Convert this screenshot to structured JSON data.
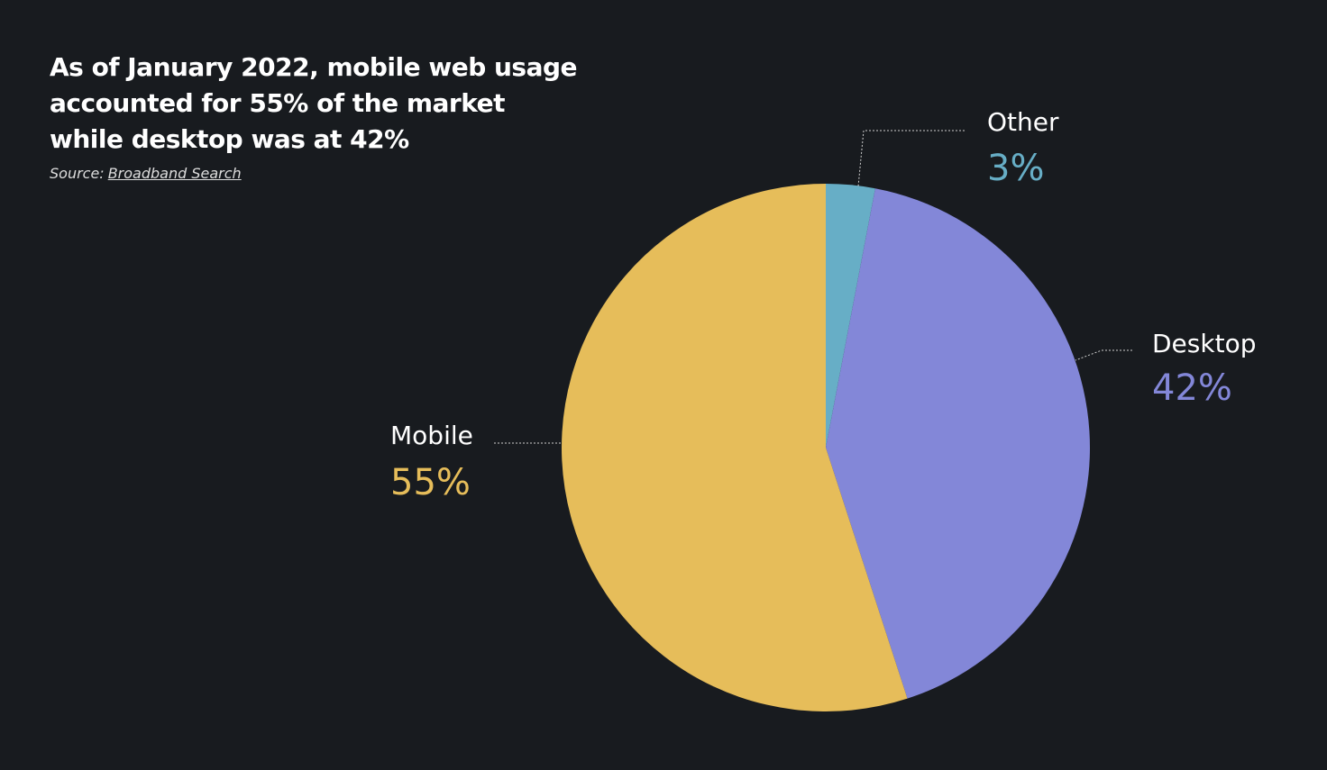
{
  "chart_data": {
    "type": "pie",
    "title": "As of January 2022, mobile web usage accounted for 55% of the market while desktop was at 42%",
    "source": {
      "label": "Source:",
      "text": "Broadband Search"
    },
    "categories": [
      "Other",
      "Desktop",
      "Mobile"
    ],
    "values": [
      3,
      42,
      55
    ],
    "value_labels": [
      "3%",
      "42%",
      "55%"
    ],
    "colors": [
      "#67aec6",
      "#8387d8",
      "#e6bd5a"
    ]
  }
}
